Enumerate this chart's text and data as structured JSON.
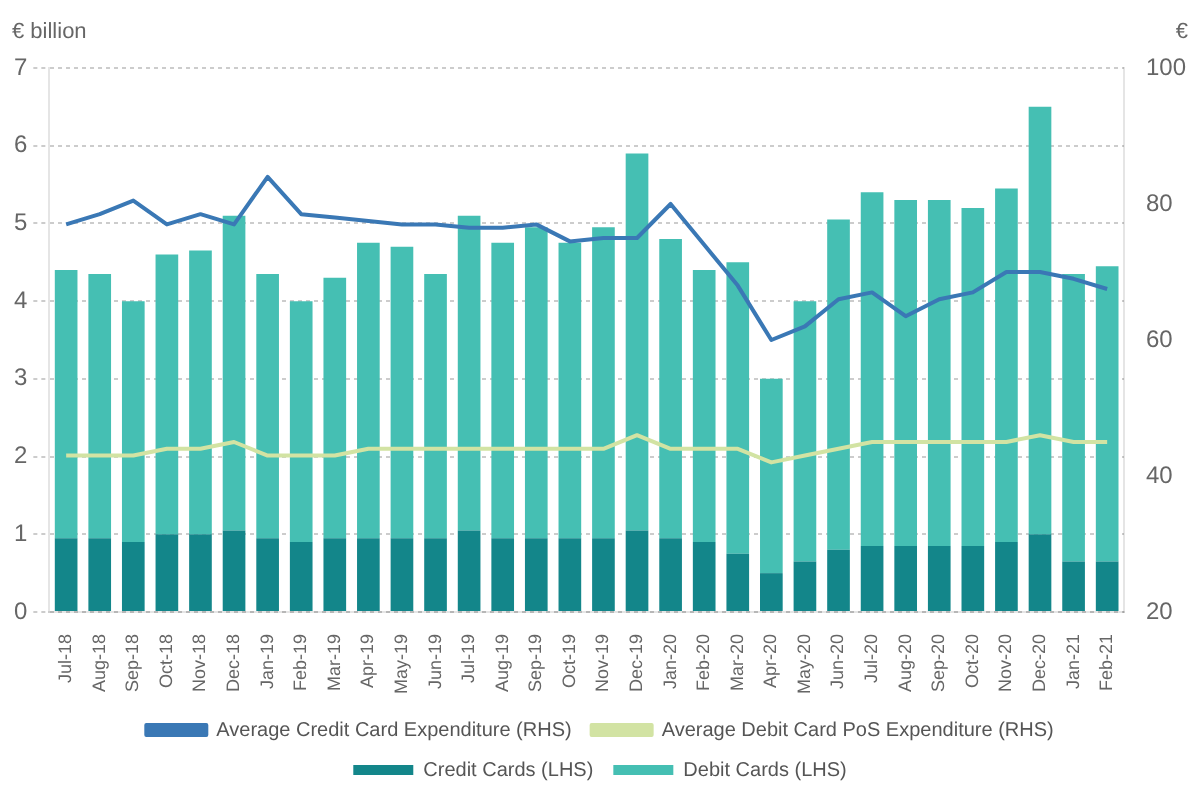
{
  "chart_data": {
    "type": "bar",
    "stacked": true,
    "ylabel": "€ billion",
    "y2label": "€",
    "categories": [
      "Jul-18",
      "Aug-18",
      "Sep-18",
      "Oct-18",
      "Nov-18",
      "Dec-18",
      "Jan-19",
      "Feb-19",
      "Mar-19",
      "Apr-19",
      "May-19",
      "Jun-19",
      "Jul-19",
      "Aug-19",
      "Sep-19",
      "Oct-19",
      "Nov-19",
      "Dec-19",
      "Jan-20",
      "Feb-20",
      "Mar-20",
      "Apr-20",
      "May-20",
      "Jun-20",
      "Jul-20",
      "Aug-20",
      "Sep-20",
      "Oct-20",
      "Nov-20",
      "Dec-20",
      "Jan-21",
      "Feb-21"
    ],
    "series": [
      {
        "name": "Credit Cards (LHS)",
        "color": "#13868a",
        "values": [
          0.95,
          0.95,
          0.9,
          1.0,
          1.0,
          1.05,
          0.95,
          0.9,
          0.95,
          0.95,
          0.95,
          0.95,
          1.05,
          0.95,
          0.95,
          0.95,
          0.95,
          1.05,
          0.95,
          0.9,
          0.75,
          0.5,
          0.65,
          0.8,
          0.85,
          0.85,
          0.85,
          0.85,
          0.9,
          1.0,
          0.65,
          0.65
        ]
      },
      {
        "name": "Debit Cards (LHS)",
        "color": "#45bfb3",
        "values": [
          3.45,
          3.4,
          3.1,
          3.6,
          3.65,
          4.05,
          3.4,
          3.1,
          3.35,
          3.8,
          3.75,
          3.4,
          4.05,
          3.8,
          4.0,
          3.8,
          4.0,
          4.85,
          3.85,
          3.5,
          3.75,
          2.5,
          3.35,
          4.25,
          4.55,
          4.45,
          4.45,
          4.35,
          4.55,
          5.5,
          3.7,
          3.8
        ]
      },
      {
        "name": "Average Credit Card Expenditure (RHS)",
        "type": "line",
        "axis": "y2",
        "color": "#3a78b5",
        "values": [
          77,
          78.5,
          80.5,
          77,
          78.5,
          77,
          84,
          78.5,
          78,
          77.5,
          77,
          77,
          76.5,
          76.5,
          77,
          74.5,
          75,
          75,
          80,
          74,
          68,
          60,
          62,
          66,
          67,
          63.5,
          66,
          67,
          70,
          70,
          69,
          67.5
        ]
      },
      {
        "name": "Average Debit Card PoS Expenditure (RHS)",
        "type": "line",
        "axis": "y2",
        "color": "#d2e3a3",
        "values": [
          43,
          43,
          43,
          44,
          44,
          45,
          43,
          43,
          43,
          44,
          44,
          44,
          44,
          44,
          44,
          44,
          44,
          46,
          44,
          44,
          44,
          42,
          43,
          44,
          45,
          45,
          45,
          45,
          45,
          46,
          45,
          45
        ]
      }
    ],
    "ylim": [
      0,
      7
    ],
    "yticks": [
      0,
      1,
      2,
      3,
      4,
      5,
      6,
      7
    ],
    "y2lim": [
      20,
      100
    ],
    "y2ticks": [
      20,
      40,
      60,
      80,
      100
    ],
    "grid": "y",
    "legend": "bottom"
  }
}
